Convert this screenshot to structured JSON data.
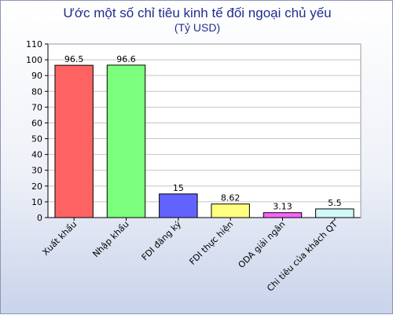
{
  "chart_data": {
    "type": "bar",
    "title": "Ước một số chỉ tiêu kinh tế đối ngoại chủ yếu",
    "subtitle": "(Tỷ USD)",
    "xlabel": "",
    "ylabel": "",
    "categories": [
      "Xuất khẩu",
      "Nhập khẩu",
      "FDI đăng ký",
      "FDI thực hiện",
      "ODA giải ngân",
      "Chi tiêu của khách QT"
    ],
    "values": [
      96.5,
      96.6,
      15,
      8.62,
      3.13,
      5.5
    ],
    "data_labels": [
      "96.5",
      "96.6",
      "15",
      "8.62",
      "3.13",
      "5.5"
    ],
    "colors": [
      "#ff6262",
      "#7cff7c",
      "#6262ff",
      "#ffff80",
      "#ff62ff",
      "#d0fafa"
    ],
    "ylim": [
      0,
      110
    ],
    "yticks": [
      "0",
      "10",
      "20",
      "30",
      "40",
      "50",
      "60",
      "70",
      "80",
      "90",
      "100",
      "110"
    ],
    "grid": true,
    "legend": "none"
  }
}
